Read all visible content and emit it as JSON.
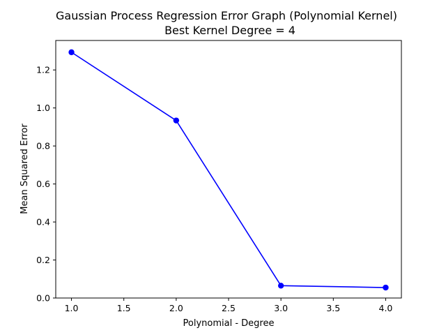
{
  "chart_data": {
    "type": "line",
    "title": "Gaussian Process Regression Error Graph (Polynomial Kernel)",
    "subtitle": "Best Kernel Degree = 4",
    "xlabel": "Polynomial - Degree",
    "ylabel": "Mean Squared Error",
    "xlim": [
      0.85,
      4.15
    ],
    "ylim": [
      0.0,
      1.355
    ],
    "x_ticks": [
      1.0,
      1.5,
      2.0,
      2.5,
      3.0,
      3.5,
      4.0
    ],
    "x_tick_labels": [
      "1.0",
      "1.5",
      "2.0",
      "2.5",
      "3.0",
      "3.5",
      "4.0"
    ],
    "y_ticks": [
      0.0,
      0.2,
      0.4,
      0.6,
      0.8,
      1.0,
      1.2
    ],
    "y_tick_labels": [
      "0.0",
      "0.2",
      "0.4",
      "0.6",
      "0.8",
      "1.0",
      "1.2"
    ],
    "grid": false,
    "series": [
      {
        "color": "#0000ff",
        "marker": "circle",
        "x": [
          1.0,
          2.0,
          3.0,
          4.0
        ],
        "y": [
          1.293,
          0.934,
          0.065,
          0.055
        ]
      }
    ]
  }
}
